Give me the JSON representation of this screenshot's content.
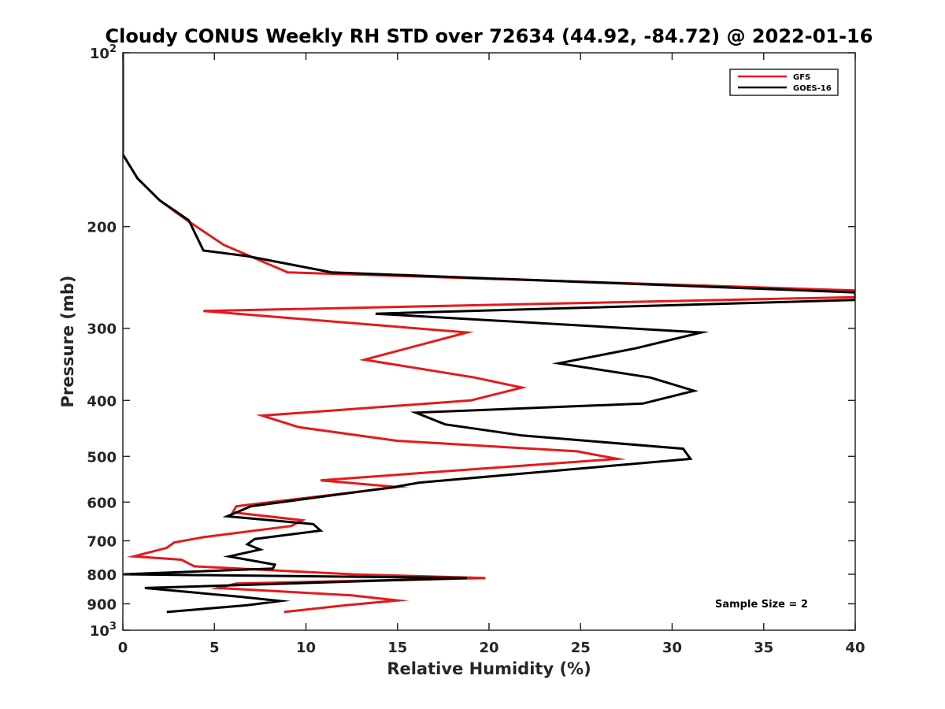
{
  "chart_data": {
    "type": "line",
    "title": "Cloudy CONUS Weekly RH STD over 72634 (44.92, -84.72) @ 2022-01-16",
    "xlabel": "Relative Humidity (%)",
    "ylabel": "Pressure (mb)",
    "xlim": [
      0,
      40
    ],
    "ylim": [
      100,
      1000
    ],
    "y_scale": "log",
    "y_reversed": true,
    "grid": false,
    "legend_position": "top-right",
    "x_ticks": [
      0,
      5,
      10,
      15,
      20,
      25,
      30,
      35,
      40
    ],
    "x_tick_labels": [
      "0",
      "5",
      "10",
      "15",
      "20",
      "25",
      "30",
      "35",
      "40"
    ],
    "y_ticks": [
      {
        "value": 200,
        "label": "200"
      },
      {
        "value": 300,
        "label": "300"
      },
      {
        "value": 400,
        "label": "400"
      },
      {
        "value": 500,
        "label": "500"
      },
      {
        "value": 600,
        "label": "600"
      },
      {
        "value": 700,
        "label": "700"
      },
      {
        "value": 800,
        "label": "800"
      },
      {
        "value": 900,
        "label": "900"
      }
    ],
    "y_tick_top": {
      "value": 100,
      "base": "10",
      "exp": "2"
    },
    "y_tick_bottom": {
      "value": 1000,
      "base": "10",
      "exp": "3"
    },
    "annotation": "Sample Size = 2",
    "series": [
      {
        "name": "GFS",
        "color": "#e41a1c",
        "points": [
          [
            0.0,
            100
          ],
          [
            0.0,
            150
          ],
          [
            0.8,
            165
          ],
          [
            2.0,
            180
          ],
          [
            3.5,
            195
          ],
          [
            5.5,
            215
          ],
          [
            9.0,
            240
          ],
          [
            40.0,
            258
          ],
          [
            40.0,
            265
          ],
          [
            4.4,
            280
          ],
          [
            18.8,
            305
          ],
          [
            13.2,
            340
          ],
          [
            19.2,
            365
          ],
          [
            21.8,
            380
          ],
          [
            19.0,
            400
          ],
          [
            7.6,
            425
          ],
          [
            9.6,
            445
          ],
          [
            15.0,
            470
          ],
          [
            24.8,
            490
          ],
          [
            27.0,
            505
          ],
          [
            10.8,
            550
          ],
          [
            15.0,
            565
          ],
          [
            6.2,
            610
          ],
          [
            6.0,
            625
          ],
          [
            9.8,
            645
          ],
          [
            9.2,
            660
          ],
          [
            4.4,
            690
          ],
          [
            2.8,
            705
          ],
          [
            2.4,
            720
          ],
          [
            0.6,
            745
          ],
          [
            3.2,
            755
          ],
          [
            3.9,
            775
          ],
          [
            12.5,
            800
          ],
          [
            19.8,
            812
          ],
          [
            6.2,
            830
          ],
          [
            5.2,
            845
          ],
          [
            12.5,
            870
          ],
          [
            15.0,
            888
          ],
          [
            12.2,
            905
          ],
          [
            8.8,
            930
          ]
        ]
      },
      {
        "name": "GOES-16",
        "color": "#000000",
        "points": [
          [
            0.0,
            100
          ],
          [
            0.0,
            150
          ],
          [
            0.8,
            165
          ],
          [
            2.0,
            180
          ],
          [
            3.6,
            195
          ],
          [
            4.4,
            220
          ],
          [
            6.8,
            225
          ],
          [
            11.4,
            240
          ],
          [
            40.0,
            260
          ],
          [
            40.0,
            268
          ],
          [
            13.8,
            283
          ],
          [
            31.6,
            305
          ],
          [
            28.0,
            325
          ],
          [
            23.8,
            345
          ],
          [
            28.8,
            365
          ],
          [
            31.2,
            385
          ],
          [
            28.4,
            405
          ],
          [
            16.0,
            420
          ],
          [
            17.6,
            440
          ],
          [
            21.8,
            460
          ],
          [
            30.6,
            485
          ],
          [
            31.0,
            505
          ],
          [
            16.2,
            555
          ],
          [
            14.8,
            565
          ],
          [
            7.0,
            610
          ],
          [
            5.7,
            635
          ],
          [
            10.4,
            655
          ],
          [
            10.8,
            672
          ],
          [
            7.2,
            695
          ],
          [
            6.8,
            710
          ],
          [
            7.5,
            725
          ],
          [
            5.8,
            745
          ],
          [
            8.3,
            770
          ],
          [
            8.2,
            782
          ],
          [
            0.0,
            800
          ],
          [
            18.8,
            812
          ],
          [
            1.2,
            845
          ],
          [
            6.4,
            875
          ],
          [
            8.6,
            890
          ],
          [
            6.8,
            905
          ],
          [
            2.4,
            930
          ]
        ]
      }
    ]
  }
}
